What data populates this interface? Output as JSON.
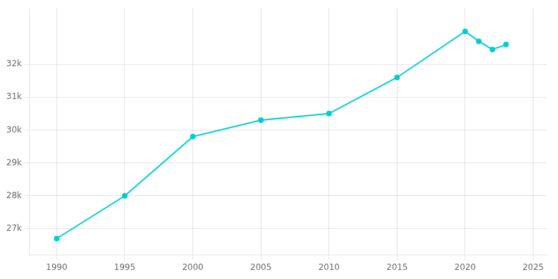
{
  "chart_data": {
    "type": "line",
    "x": [
      1990,
      1995,
      2000,
      2005,
      2010,
      2015,
      2020,
      2021,
      2022,
      2023
    ],
    "values": [
      26700,
      28000,
      29800,
      30300,
      30500,
      31600,
      33000,
      32700,
      32450,
      32600
    ],
    "color": "#00CDD0",
    "marker": "o",
    "xlim": [
      1988,
      2026
    ],
    "xticks": [
      1990,
      1995,
      2000,
      2005,
      2010,
      2015,
      2020,
      2025
    ],
    "ylim": [
      26200,
      33700
    ],
    "yticks": [
      {
        "value": 27000,
        "label": "27k"
      },
      {
        "value": 28000,
        "label": "28k"
      },
      {
        "value": 29000,
        "label": "29k"
      },
      {
        "value": 30000,
        "label": "30k"
      },
      {
        "value": 31000,
        "label": "31k"
      },
      {
        "value": 32000,
        "label": "32k"
      }
    ],
    "grid": true
  }
}
